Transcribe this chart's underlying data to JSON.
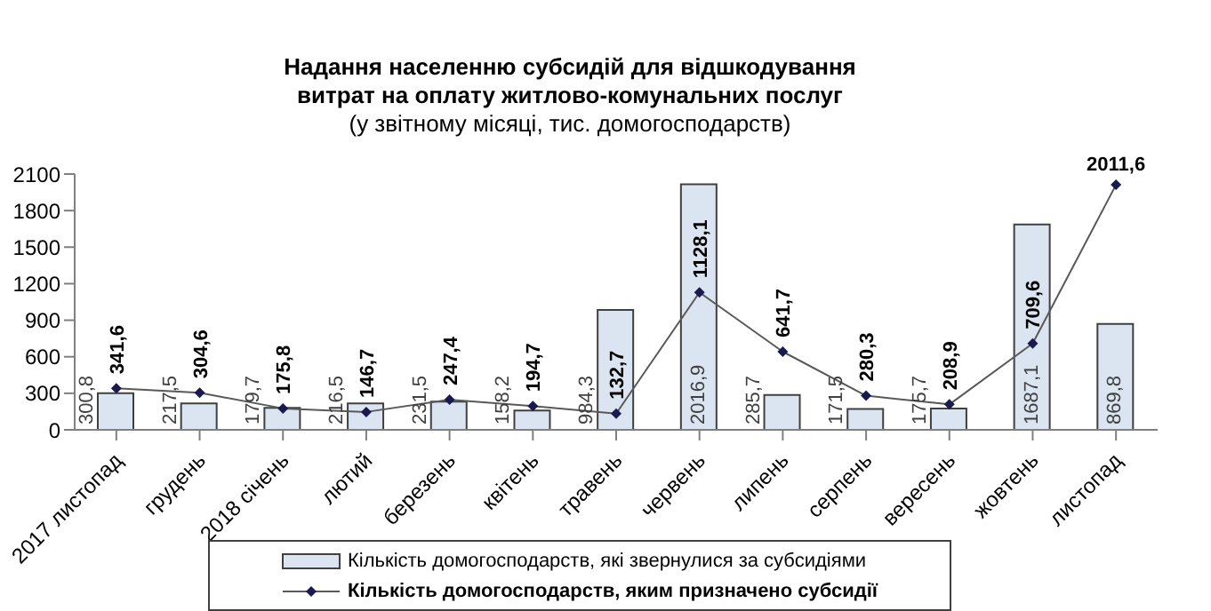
{
  "chart_data": {
    "type": "bar",
    "title": "Надання населенню субсидій для відшкодування витрат на оплату житлово-комунальних послуг",
    "subtitle": "(у звітному місяці, тис. домогосподарств)",
    "categories": [
      "2017 листопад",
      "грудень",
      "2018 січень",
      "лютий",
      "березень",
      "квітень",
      "травень",
      "червень",
      "липень",
      "серпень",
      "вересень",
      "жовтень",
      "листопад"
    ],
    "series": [
      {
        "name": "Кількість домогосподарств, які звернулися за субсидіями",
        "color": "#dbe5f1",
        "values": [
          300.8,
          217.5,
          179.7,
          216.5,
          231.5,
          158.2,
          984.3,
          2016.9,
          285.7,
          171.5,
          175.7,
          1687.1,
          869.8
        ],
        "value_labels": [
          "300,8",
          "217,5",
          "179,7",
          "216,5",
          "231,5",
          "158,2",
          "984,3",
          "2016,9",
          "285,7",
          "171,5",
          "175,7",
          "1687,1",
          "869,8"
        ]
      },
      {
        "name": "Кількість домогосподарств, яким  призначено субсидії",
        "type": "line",
        "color": "#595959",
        "values": [
          341.6,
          304.6,
          175.8,
          146.7,
          247.4,
          194.7,
          132.7,
          1128.1,
          641.7,
          280.3,
          208.9,
          709.6,
          2011.6
        ],
        "value_labels": [
          "341,6",
          "304,6",
          "175,8",
          "146,7",
          "247,4",
          "194,7",
          "132,7",
          "1128,1",
          "641,7",
          "280,3",
          "208,9",
          "709,6",
          "2011,6"
        ]
      }
    ],
    "ylim": [
      0,
      2100
    ],
    "yticks": [
      0,
      300,
      600,
      900,
      1200,
      1500,
      1800,
      2100
    ],
    "grid": false,
    "legend": "bottom",
    "marker": "diamond"
  }
}
